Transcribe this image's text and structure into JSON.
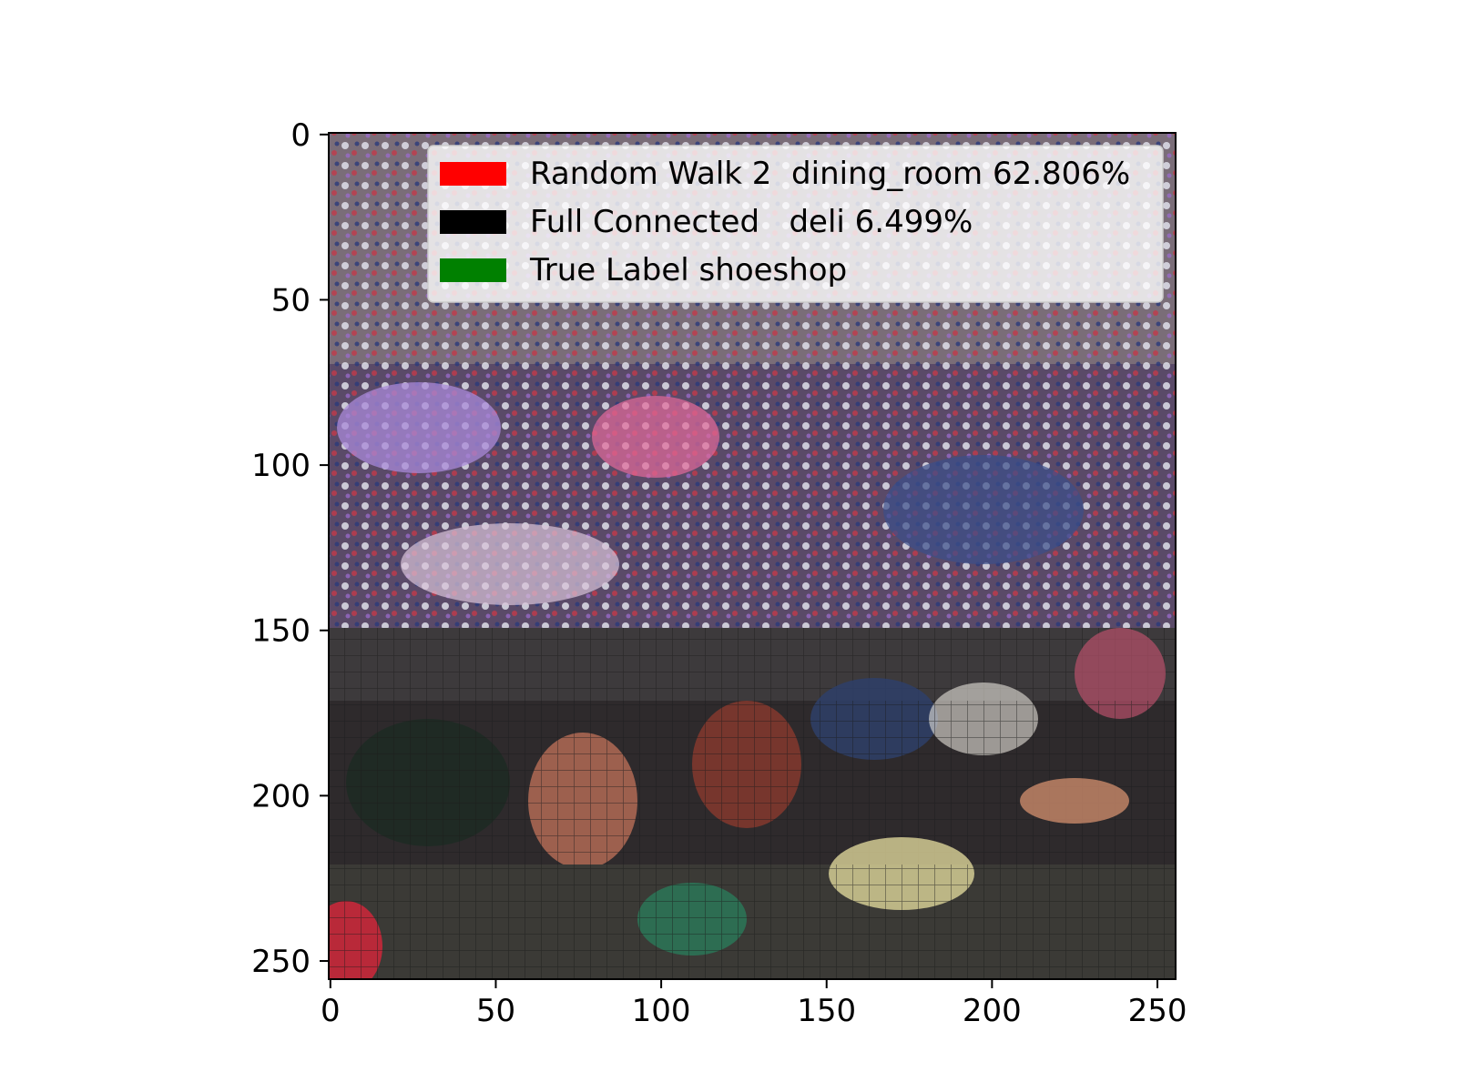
{
  "figure": {
    "image_description_icon": "shoe-shop-photo",
    "legend": {
      "entries": [
        {
          "label": "Random Walk 2  dining_room 62.806%",
          "color": "#ff0000"
        },
        {
          "label": "Full Connected   deli 6.499%",
          "color": "#000000"
        },
        {
          "label": "True Label shoeshop",
          "color": "#008000"
        }
      ]
    },
    "axes": {
      "x_ticks": [
        "0",
        "50",
        "100",
        "150",
        "200",
        "250"
      ],
      "y_ticks": [
        "0",
        "50",
        "100",
        "150",
        "200",
        "250"
      ],
      "xlim": [
        0,
        256
      ],
      "ylim": [
        256,
        0
      ]
    }
  },
  "chart_data": {
    "type": "image",
    "title": "",
    "xlabel": "",
    "ylabel": "",
    "xlim": [
      -0.5,
      255.5
    ],
    "ylim": [
      255.5,
      -0.5
    ],
    "x_ticks": [
      0,
      50,
      100,
      150,
      200,
      250
    ],
    "y_ticks": [
      0,
      50,
      100,
      150,
      200,
      250
    ],
    "legend_placement": "upper right",
    "legend": [
      {
        "name": "Random Walk 2  dining_room 62.806%",
        "color": "#ff0000"
      },
      {
        "name": "Full Connected   deli 6.499%",
        "color": "#000000"
      },
      {
        "name": "True Label shoeshop",
        "color": "#008000"
      }
    ]
  }
}
